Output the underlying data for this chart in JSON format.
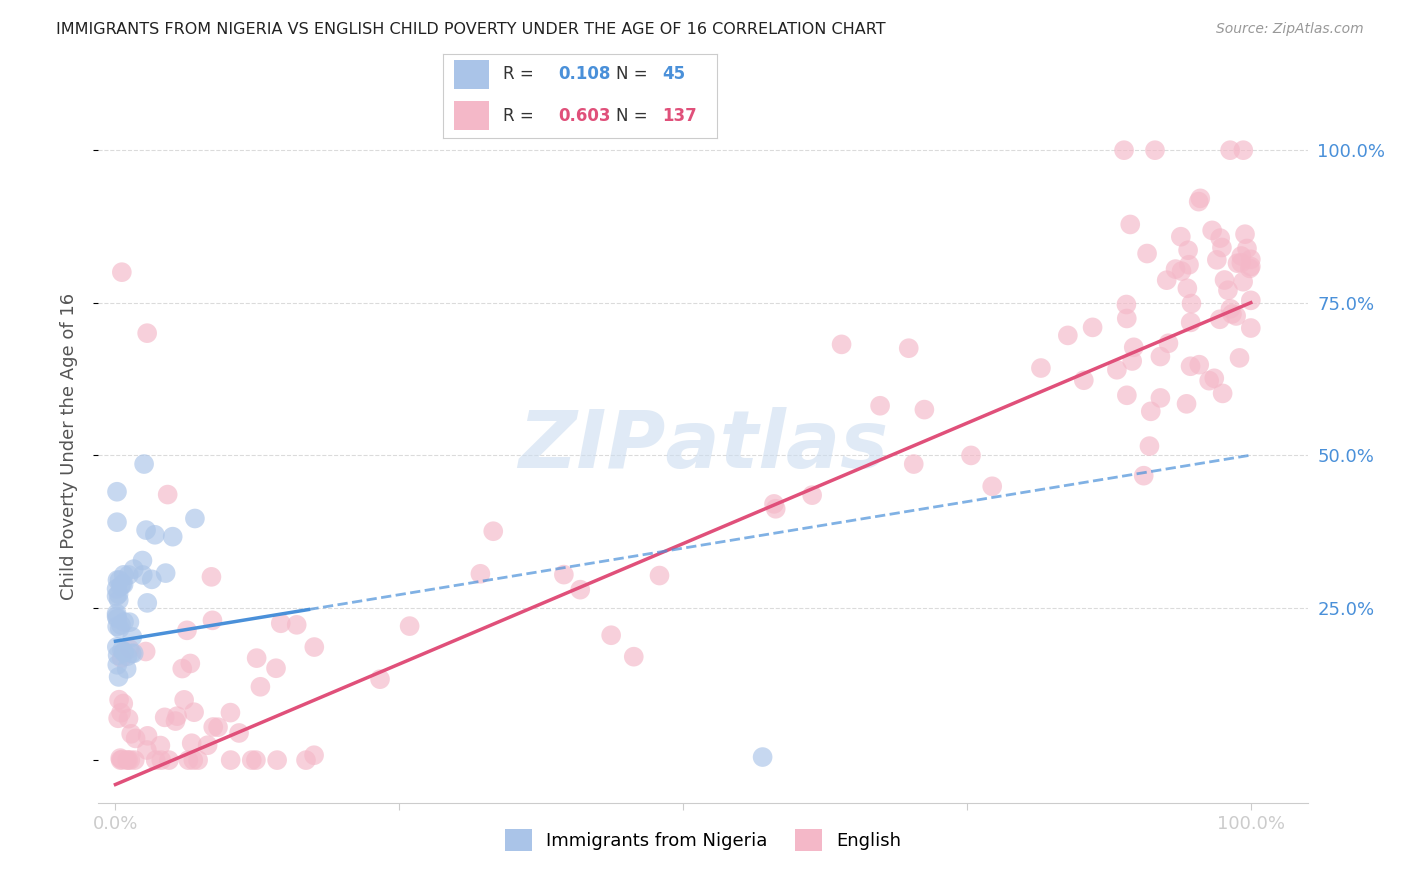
{
  "title": "IMMIGRANTS FROM NIGERIA VS ENGLISH CHILD POVERTY UNDER THE AGE OF 16 CORRELATION CHART",
  "source": "Source: ZipAtlas.com",
  "ylabel": "Child Poverty Under the Age of 16",
  "legend_label1": "Immigrants from Nigeria",
  "legend_label2": "English",
  "r1": 0.108,
  "n1": 45,
  "r2": 0.603,
  "n2": 137,
  "color1": "#aac4e8",
  "color2": "#f4b8c8",
  "line1_color": "#4a90d9",
  "line2_color": "#e0507a",
  "watermark_color": "#ccddf0",
  "background_color": "#ffffff",
  "grid_color": "#cccccc",
  "title_color": "#222222",
  "source_color": "#999999",
  "axis_label_color": "#4a90d9",
  "ylabel_color": "#555555"
}
